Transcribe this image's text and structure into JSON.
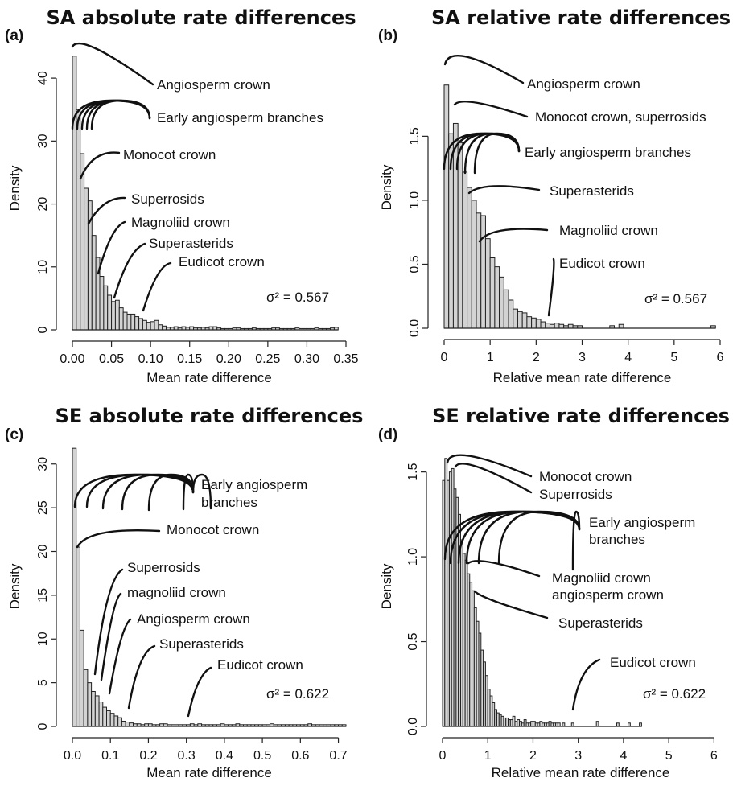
{
  "chart_data": [
    {
      "type": "histogram",
      "panel": "(a)",
      "title": "SA absolute rate differences",
      "xlabel": "Mean rate difference",
      "ylabel": "Density",
      "xlim": [
        0,
        0.35
      ],
      "ylim": [
        0,
        45
      ],
      "xticks": [
        "0.00",
        "0.05",
        "0.10",
        "0.15",
        "0.20",
        "0.25",
        "0.30",
        "0.35"
      ],
      "yticks": [
        "0",
        "10",
        "20",
        "30",
        "40"
      ],
      "bin_width": 0.005,
      "x": [
        0.0025,
        0.0075,
        0.0125,
        0.0175,
        0.0225,
        0.0275,
        0.0325,
        0.0375,
        0.0425,
        0.0475,
        0.0525,
        0.0575,
        0.0625,
        0.0675,
        0.0725,
        0.0775,
        0.0825,
        0.0875,
        0.0925,
        0.0975,
        0.1025,
        0.1075,
        0.1125,
        0.1175,
        0.1225,
        0.1275,
        0.1325,
        0.1375,
        0.1425,
        0.1475,
        0.1525,
        0.1575,
        0.1625,
        0.1675,
        0.1725,
        0.1775,
        0.1825,
        0.1875,
        0.1925,
        0.1975,
        0.2025,
        0.2075,
        0.2125,
        0.2175,
        0.2225,
        0.2275,
        0.2325,
        0.2375,
        0.2425,
        0.2475,
        0.2525,
        0.2575,
        0.2625,
        0.2675,
        0.2725,
        0.2775,
        0.2825,
        0.2875,
        0.2925,
        0.2975,
        0.3025,
        0.3075,
        0.3125,
        0.3175,
        0.3225,
        0.3275,
        0.3325,
        0.3375
      ],
      "values": [
        43.5,
        35,
        28,
        22.5,
        20.5,
        15,
        11.5,
        8.5,
        7,
        5.5,
        4.5,
        4.7,
        3.5,
        2.8,
        2.5,
        2.5,
        2.1,
        1.8,
        1.5,
        1.2,
        1.3,
        1.5,
        0.8,
        0.6,
        0.4,
        0.4,
        0.5,
        0.3,
        0.5,
        0.4,
        0.5,
        0.3,
        0.3,
        0.4,
        0.3,
        0.5,
        0.5,
        0.3,
        0.2,
        0.2,
        0.2,
        0.3,
        0.3,
        0.2,
        0.2,
        0.2,
        0.3,
        0.2,
        0.2,
        0.2,
        0.2,
        0.3,
        0.3,
        0.2,
        0.2,
        0.2,
        0.2,
        0.3,
        0.2,
        0.2,
        0.2,
        0.2,
        0.3,
        0.2,
        0.2,
        0.2,
        0.3,
        0.4
      ],
      "sigma_label": "σ² = 0.567",
      "sigma_value": 0.567,
      "annotations": [
        {
          "text": "Angiosperm crown",
          "x": 0.005
        },
        {
          "text": "Early angiosperm branches",
          "x": [
            0.0,
            0.008,
            0.015,
            0.022,
            0.029
          ]
        },
        {
          "text": "Monocot crown",
          "x": 0.012
        },
        {
          "text": "Superrosids",
          "x": 0.022
        },
        {
          "text": "Magnoliid crown",
          "x": 0.035
        },
        {
          "text": "Superasterids",
          "x": 0.057
        },
        {
          "text": "Eudicot crown",
          "x": 0.088
        }
      ]
    },
    {
      "type": "histogram",
      "panel": "(b)",
      "title": "SA relative rate differences",
      "xlabel": "Relative mean rate difference",
      "ylabel": "Density",
      "xlim": [
        0,
        6
      ],
      "ylim": [
        0,
        2.2
      ],
      "xticks": [
        "0",
        "1",
        "2",
        "3",
        "4",
        "5",
        "6"
      ],
      "yticks": [
        "0.0",
        "0.5",
        "1.0",
        "1.5"
      ],
      "bin_width": 0.1,
      "x": [
        0.05,
        0.15,
        0.25,
        0.35,
        0.45,
        0.55,
        0.65,
        0.75,
        0.85,
        0.95,
        1.05,
        1.15,
        1.25,
        1.35,
        1.45,
        1.55,
        1.65,
        1.75,
        1.85,
        1.95,
        2.05,
        2.15,
        2.25,
        2.35,
        2.45,
        2.55,
        2.65,
        2.75,
        2.85,
        2.95,
        3.05,
        3.15,
        3.25,
        3.35,
        3.45,
        3.55,
        3.65,
        3.75,
        3.85,
        3.95,
        4.05,
        4.15,
        4.25,
        4.35,
        4.45,
        4.55,
        4.65,
        4.75,
        4.85,
        4.95,
        5.05,
        5.15,
        5.25,
        5.35,
        5.45,
        5.55,
        5.65,
        5.75,
        5.85
      ],
      "values": [
        1.9,
        1.52,
        1.6,
        1.45,
        1.22,
        1.1,
        1.0,
        0.9,
        0.88,
        0.7,
        0.55,
        0.48,
        0.4,
        0.3,
        0.22,
        0.15,
        0.13,
        0.12,
        0.09,
        0.08,
        0.07,
        0.05,
        0.04,
        0.03,
        0.04,
        0.03,
        0.02,
        0.03,
        0.02,
        0.02,
        0.0,
        0.0,
        0.0,
        0.0,
        0.0,
        0.0,
        0.02,
        0.0,
        0.03,
        0.0,
        0.0,
        0.0,
        0.0,
        0.0,
        0.0,
        0.0,
        0.0,
        0.0,
        0.0,
        0.0,
        0.0,
        0.0,
        0.0,
        0.0,
        0.0,
        0.0,
        0.0,
        0.0,
        0.02
      ],
      "sigma_label": "σ² = 0.567",
      "sigma_value": 0.567,
      "annotations": [
        {
          "text": "Angiosperm crown",
          "x": 0.05
        },
        {
          "text": "Monocot crown, superrosids",
          "x": 0.2
        },
        {
          "text": "Early angiosperm branches",
          "x": [
            0.05,
            0.25,
            0.4,
            0.6,
            0.75
          ]
        },
        {
          "text": "Superasterids",
          "x": 0.55
        },
        {
          "text": "Magnoliid crown",
          "x": 0.7
        },
        {
          "text": "Eudicot crown",
          "x": 1.7
        }
      ]
    },
    {
      "type": "histogram",
      "panel": "(c)",
      "title": "SE absolute rate differences",
      "xlabel": "Mean rate difference",
      "ylabel": "Density",
      "xlim": [
        0,
        0.72
      ],
      "ylim": [
        0,
        32
      ],
      "xticks": [
        "0.0",
        "0.1",
        "0.2",
        "0.3",
        "0.4",
        "0.5",
        "0.6",
        "0.7"
      ],
      "yticks": [
        "0",
        "5",
        "10",
        "15",
        "20",
        "25",
        "30"
      ],
      "bin_width": 0.01,
      "x": [
        0.005,
        0.015,
        0.025,
        0.035,
        0.045,
        0.055,
        0.065,
        0.075,
        0.085,
        0.095,
        0.105,
        0.115,
        0.125,
        0.135,
        0.145,
        0.155,
        0.165,
        0.175,
        0.185,
        0.195,
        0.205,
        0.215,
        0.225,
        0.235,
        0.245,
        0.255,
        0.265,
        0.275,
        0.285,
        0.295,
        0.305,
        0.315,
        0.325,
        0.335,
        0.345,
        0.355,
        0.365,
        0.375,
        0.385,
        0.395,
        0.405,
        0.415,
        0.425,
        0.435,
        0.445,
        0.455,
        0.465,
        0.475,
        0.485,
        0.495,
        0.505,
        0.515,
        0.525,
        0.535,
        0.545,
        0.555,
        0.565,
        0.575,
        0.585,
        0.595,
        0.605,
        0.615,
        0.625,
        0.635,
        0.645,
        0.655,
        0.665,
        0.675,
        0.685,
        0.695,
        0.705,
        0.715
      ],
      "values": [
        31.8,
        20.5,
        11,
        6.5,
        5,
        4,
        3.5,
        2.8,
        2.2,
        1.8,
        1.5,
        1.2,
        1.0,
        0.6,
        0.5,
        0.4,
        0.3,
        0.3,
        0.2,
        0.3,
        0.3,
        0.2,
        0.2,
        0.3,
        0.3,
        0.2,
        0.2,
        0.2,
        0.2,
        0.2,
        0.2,
        0.3,
        0.2,
        0.3,
        0.2,
        0.2,
        0.2,
        0.2,
        0.2,
        0.3,
        0.2,
        0.2,
        0.2,
        0.3,
        0.2,
        0.2,
        0.2,
        0.2,
        0.2,
        0.2,
        0.2,
        0.2,
        0.3,
        0.2,
        0.2,
        0.2,
        0.2,
        0.2,
        0.2,
        0.2,
        0.2,
        0.2,
        0.3,
        0.2,
        0.2,
        0.2,
        0.2,
        0.2,
        0.2,
        0.2,
        0.2,
        0.2
      ],
      "sigma_label": "σ² = 0.622",
      "sigma_value": 0.622,
      "annotations": [
        {
          "text": "Early angiosperm branches",
          "x": [
            0.005,
            0.05,
            0.09,
            0.15,
            0.22,
            0.26,
            0.31
          ]
        },
        {
          "text": "Monocot crown",
          "x": 0.015
        },
        {
          "text": "Superrosids",
          "x": 0.062
        },
        {
          "text": "magnoliid crown",
          "x": 0.072
        },
        {
          "text": "Angiosperm crown",
          "x": 0.09
        },
        {
          "text": "Superasterids",
          "x": 0.14
        },
        {
          "text": "Eudicot crown",
          "x": 0.31
        }
      ]
    },
    {
      "type": "histogram",
      "panel": "(d)",
      "title": "SE relative rate differences",
      "xlabel": "Relative mean rate difference",
      "ylabel": "Density",
      "xlim": [
        0,
        6.1
      ],
      "ylim": [
        0,
        1.65
      ],
      "xticks": [
        "0",
        "1",
        "2",
        "3",
        "4",
        "5",
        "6"
      ],
      "yticks": [
        "0.0",
        "0.5",
        "1.0",
        "1.5"
      ],
      "bin_width": 0.05,
      "x": [
        0.025,
        0.075,
        0.125,
        0.175,
        0.225,
        0.275,
        0.325,
        0.375,
        0.425,
        0.475,
        0.525,
        0.575,
        0.625,
        0.675,
        0.725,
        0.775,
        0.825,
        0.875,
        0.925,
        0.975,
        1.025,
        1.075,
        1.125,
        1.175,
        1.225,
        1.275,
        1.325,
        1.375,
        1.425,
        1.475,
        1.525,
        1.575,
        1.625,
        1.675,
        1.725,
        1.775,
        1.825,
        1.875,
        1.925,
        1.975,
        2.025,
        2.075,
        2.125,
        2.175,
        2.225,
        2.275,
        2.325,
        2.375,
        2.425,
        2.475,
        2.525,
        2.575,
        2.625,
        2.675,
        2.725,
        2.775,
        2.825,
        2.875,
        2.925,
        2.975,
        3.025,
        3.075,
        3.125,
        3.175,
        3.225,
        3.275,
        3.325,
        3.375,
        3.425,
        3.475,
        3.525,
        3.575,
        3.625,
        3.675,
        3.725,
        3.775,
        3.825,
        3.875,
        3.925,
        3.975,
        4.025,
        4.075,
        4.125,
        4.175,
        4.225,
        4.275,
        4.325,
        4.375
      ],
      "values": [
        1.45,
        1.58,
        1.45,
        1.5,
        1.52,
        1.4,
        1.35,
        1.25,
        1.1,
        1.02,
        0.98,
        0.9,
        0.85,
        0.8,
        0.7,
        0.62,
        0.55,
        0.45,
        0.38,
        0.3,
        0.22,
        0.18,
        0.14,
        0.1,
        0.08,
        0.07,
        0.06,
        0.05,
        0.05,
        0.04,
        0.04,
        0.06,
        0.03,
        0.04,
        0.03,
        0.02,
        0.04,
        0.02,
        0.02,
        0.03,
        0.03,
        0.02,
        0.02,
        0.03,
        0.02,
        0.02,
        0.02,
        0.03,
        0.02,
        0.02,
        0.02,
        0.02,
        0.0,
        0.02,
        0.0,
        0.0,
        0.0,
        0.02,
        0.0,
        0.0,
        0.0,
        0.0,
        0.0,
        0.0,
        0.0,
        0.0,
        0.0,
        0.0,
        0.03,
        0.0,
        0.0,
        0.0,
        0.0,
        0.0,
        0.0,
        0.0,
        0.0,
        0.02,
        0.0,
        0.0,
        0.0,
        0.0,
        0.02,
        0.0,
        0.0,
        0.0,
        0.0,
        0.02
      ],
      "sigma_label": "σ² = 0.622",
      "sigma_value": 0.622,
      "annotations": [
        {
          "text": "Monocot crown",
          "x": 0.1
        },
        {
          "text": "Superrosids",
          "x": 0.3
        },
        {
          "text": "Early angiosperm branches",
          "x": [
            0.05,
            0.25,
            0.45,
            0.7,
            1.0,
            2.9
          ]
        },
        {
          "text": "Magnoliid crown\nangiosperm crown",
          "x": 0.45
        },
        {
          "text": "Superasterids",
          "x": 0.55
        },
        {
          "text": "Eudicot crown",
          "x": 2.9
        }
      ]
    }
  ]
}
